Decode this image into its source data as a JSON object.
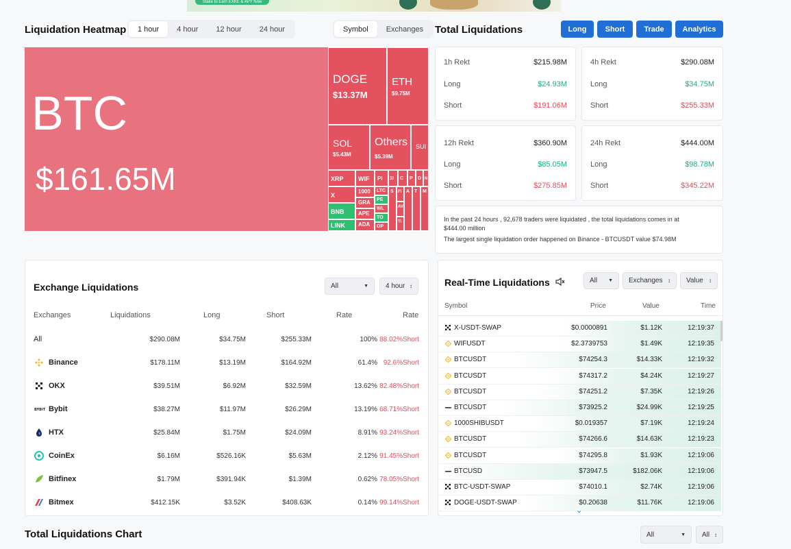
{
  "banner": {
    "pill_text": "Stake to Earn EXKE & APY Now"
  },
  "heatmap": {
    "title": "Liquidation Heatmap",
    "time_tabs": [
      "1 hour",
      "4 hour",
      "12 hour",
      "24 hour"
    ],
    "active_time_tab": "1 hour",
    "view_tabs": [
      "Symbol",
      "Exchanges"
    ],
    "active_view_tab": "Symbol",
    "tiles": [
      {
        "symbol": "BTC",
        "value": "$161.65M"
      },
      {
        "symbol": "DOGE",
        "value": "$13.37M"
      },
      {
        "symbol": "ETH",
        "value": "$9.75M"
      },
      {
        "symbol": "SOL",
        "value": "$5.43M"
      },
      {
        "symbol": "Others",
        "value": "$5.39M"
      },
      {
        "symbol": "SUI",
        "value": ""
      },
      {
        "symbol": "XRP",
        "value": ""
      },
      {
        "symbol": "WIF",
        "value": ""
      },
      {
        "symbol": "X",
        "value": ""
      },
      {
        "symbol": "1000",
        "value": ""
      },
      {
        "symbol": "GRA",
        "value": ""
      },
      {
        "symbol": "BNB",
        "value": ""
      },
      {
        "symbol": "APE",
        "value": ""
      },
      {
        "symbol": "LINK",
        "value": ""
      },
      {
        "symbol": "ADA",
        "value": ""
      },
      {
        "symbol": "PI",
        "value": ""
      },
      {
        "symbol": "1I",
        "value": ""
      },
      {
        "symbol": "C",
        "value": ""
      },
      {
        "symbol": "P",
        "value": ""
      },
      {
        "symbol": "D",
        "value": ""
      },
      {
        "symbol": "N",
        "value": ""
      },
      {
        "symbol": "LTC",
        "value": ""
      },
      {
        "symbol": "PE",
        "value": ""
      },
      {
        "symbol": "WL",
        "value": ""
      },
      {
        "symbol": "TO",
        "value": ""
      },
      {
        "symbol": "OP",
        "value": ""
      },
      {
        "symbol": "S",
        "value": ""
      },
      {
        "symbol": "A",
        "value": ""
      },
      {
        "symbol": "T",
        "value": ""
      },
      {
        "symbol": "FI",
        "value": ""
      },
      {
        "symbol": "AV",
        "value": ""
      },
      {
        "symbol": "TI",
        "value": ""
      },
      {
        "symbol": "M",
        "value": ""
      }
    ]
  },
  "total": {
    "title": "Total Liquidations",
    "buttons": [
      "Long",
      "Short",
      "Trade",
      "Analytics"
    ],
    "long_label": "Long",
    "short_label": "Short",
    "cards": [
      {
        "label": "1h Rekt",
        "total": "$215.98M",
        "long": "$24.93M",
        "short": "$191.06M"
      },
      {
        "label": "4h Rekt",
        "total": "$290.08M",
        "long": "$34.75M",
        "short": "$255.33M"
      },
      {
        "label": "12h Rekt",
        "total": "$360.90M",
        "long": "$85.05M",
        "short": "$275.85M"
      },
      {
        "label": "24h Rekt",
        "total": "$444.00M",
        "long": "$98.78M",
        "short": "$345.22M"
      }
    ],
    "info_line1": "In the past 24 hours , 92,678 traders were liquidated , the total liquidations comes in at",
    "info_line2": "$444.00 million",
    "info_line3": "The largest single liquidation order happened on Binance - BTCUSDT value $74.98M"
  },
  "exchange": {
    "title": "Exchange Liquidations",
    "filter1": "All",
    "filter2": "4 hour",
    "headers": [
      "Exchanges",
      "Liquidations",
      "Long",
      "Short",
      "Rate",
      "Rate"
    ],
    "rows": [
      {
        "name": "All",
        "liq": "$290.08M",
        "long": "$34.75M",
        "short": "$255.33M",
        "rate": "100%",
        "short_rate": "88.02%Short",
        "logo": "none"
      },
      {
        "name": "Binance",
        "liq": "$178.11M",
        "long": "$13.19M",
        "short": "$164.92M",
        "rate": "61.4%",
        "short_rate": "92.6%Short",
        "logo": "binance"
      },
      {
        "name": "OKX",
        "liq": "$39.51M",
        "long": "$6.92M",
        "short": "$32.59M",
        "rate": "13.62%",
        "short_rate": "82.48%Short",
        "logo": "okx"
      },
      {
        "name": "Bybit",
        "liq": "$38.27M",
        "long": "$11.97M",
        "short": "$26.29M",
        "rate": "13.19%",
        "short_rate": "68.71%Short",
        "logo": "bybit"
      },
      {
        "name": "HTX",
        "liq": "$25.84M",
        "long": "$1.75M",
        "short": "$24.09M",
        "rate": "8.91%",
        "short_rate": "93.24%Short",
        "logo": "htx"
      },
      {
        "name": "CoinEx",
        "liq": "$6.16M",
        "long": "$526.16K",
        "short": "$5.63M",
        "rate": "2.12%",
        "short_rate": "91.45%Short",
        "logo": "coinex"
      },
      {
        "name": "Bitfinex",
        "liq": "$1.79M",
        "long": "$391.94K",
        "short": "$1.39M",
        "rate": "0.62%",
        "short_rate": "78.05%Short",
        "logo": "bitfinex"
      },
      {
        "name": "Bitmex",
        "liq": "$412.15K",
        "long": "$3.52K",
        "short": "$408.63K",
        "rate": "0.14%",
        "short_rate": "99.14%Short",
        "logo": "bitmex"
      }
    ]
  },
  "realtime": {
    "title": "Real-Time Liquidations",
    "filter1": "All",
    "filter2": "Exchanges",
    "filter3": "Value",
    "headers": [
      "Symbol",
      "Price",
      "Value",
      "Time"
    ],
    "rows": [
      {
        "symbol": "X-USDT-SWAP",
        "price": "$0.0000891",
        "value": "$1.12K",
        "time": "12:19:37",
        "ex": "okx",
        "fill": 0.2
      },
      {
        "symbol": "WIFUSDT",
        "price": "$2.3739753",
        "value": "$1.49K",
        "time": "12:19:35",
        "ex": "binance",
        "fill": 0.22
      },
      {
        "symbol": "BTCUSDT",
        "price": "$74254.3",
        "value": "$14.33K",
        "time": "12:19:32",
        "ex": "binance",
        "fill": 0.5
      },
      {
        "symbol": "BTCUSDT",
        "price": "$74317.2",
        "value": "$4.24K",
        "time": "12:19:27",
        "ex": "binance",
        "fill": 0.3
      },
      {
        "symbol": "BTCUSDT",
        "price": "$74251.2",
        "value": "$7.35K",
        "time": "12:19:26",
        "ex": "binance",
        "fill": 0.38
      },
      {
        "symbol": "BTCUSDT",
        "price": "$73925.2",
        "value": "$24.99K",
        "time": "12:19:25",
        "ex": "bybit",
        "fill": 0.6
      },
      {
        "symbol": "1000SHIBUSDT",
        "price": "$0.019357",
        "value": "$7.19K",
        "time": "12:19:24",
        "ex": "binance",
        "fill": 0.38
      },
      {
        "symbol": "BTCUSDT",
        "price": "$74266.6",
        "value": "$14.63K",
        "time": "12:19:23",
        "ex": "binance",
        "fill": 0.5
      },
      {
        "symbol": "BTCUSDT",
        "price": "$74295.8",
        "value": "$1.93K",
        "time": "12:19:06",
        "ex": "binance",
        "fill": 0.24
      },
      {
        "symbol": "BTCUSD",
        "price": "$73947.5",
        "value": "$182.06K",
        "time": "12:19:06",
        "ex": "bybit",
        "fill": 0.95
      },
      {
        "symbol": "BTC-USDT-SWAP",
        "price": "$74010.1",
        "value": "$2.74K",
        "time": "12:19:06",
        "ex": "okx",
        "fill": 0.26
      },
      {
        "symbol": "DOGE-USDT-SWAP",
        "price": "$0.20638",
        "value": "$11.76K",
        "time": "12:19:06",
        "ex": "okx",
        "fill": 0.45
      }
    ]
  },
  "chart_section": {
    "title": "Total Liquidations Chart",
    "filter1": "All",
    "filter2": "All"
  },
  "colors": {
    "accent_blue": "#1f6fd6",
    "heat_red": "#e8737f",
    "heat_red_dark": "#e4525f",
    "heat_green": "#2fbf71",
    "long_green": "#16b07a",
    "short_red": "#e84a55"
  }
}
